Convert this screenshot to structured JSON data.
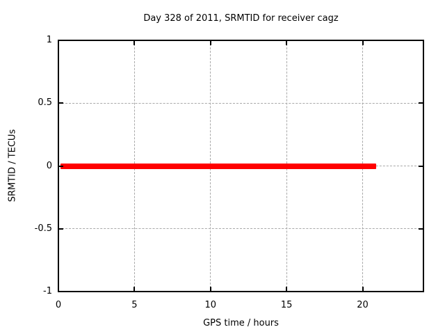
{
  "window": {
    "background": "#ffffff"
  },
  "chart_data": {
    "type": "line",
    "title": "Day 328 of 2011, SRMTID for receiver cagz",
    "xlabel": "GPS time / hours",
    "ylabel": "SRMTID / TECUs",
    "xlim": [
      0,
      24
    ],
    "ylim": [
      -1,
      1
    ],
    "xticks": {
      "values": [
        0,
        5,
        10,
        15,
        20
      ],
      "labels": [
        "0",
        "5",
        "10",
        "15",
        "20"
      ]
    },
    "yticks": {
      "values": [
        -1,
        -0.5,
        0,
        0.5,
        1
      ],
      "labels": [
        "-1",
        "-0.5",
        "0",
        "0.5",
        "1"
      ]
    },
    "grid": true,
    "grid_color": "#a8a8a8",
    "axis_color": "#000000",
    "text_color": "#000000",
    "legend_position": "none",
    "series": [
      {
        "name": "SRMTID",
        "color": "#ff0000",
        "style": "thick-line",
        "x": [
          0.15,
          20.9
        ],
        "y": [
          0,
          0
        ]
      }
    ]
  }
}
